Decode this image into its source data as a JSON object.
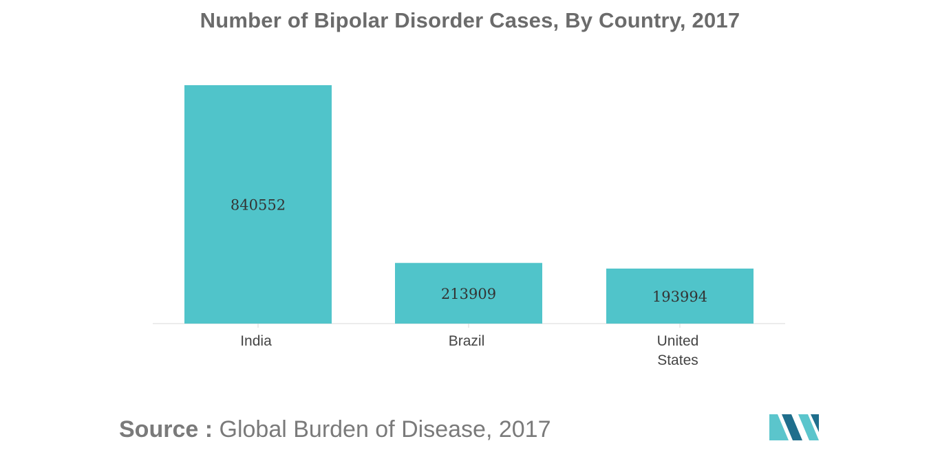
{
  "chart_data": {
    "type": "bar",
    "title": "Number of Bipolar Disorder Cases, By Country, 2017",
    "categories": [
      "India",
      "Brazil",
      "United States"
    ],
    "category_label_lines": [
      [
        "India"
      ],
      [
        "Brazil"
      ],
      [
        "United",
        "States"
      ]
    ],
    "values": [
      840552,
      213909,
      193994
    ],
    "data_labels": [
      "840552",
      "213909",
      "193994"
    ],
    "ylim": [
      0,
      840552
    ],
    "xlabel": "",
    "ylabel": "",
    "grid": false,
    "legend": "none",
    "bar_color": "#50c4ca",
    "label_color": "#333333"
  },
  "source": {
    "label": "Source :",
    "text": "Global Burden of Disease, 2017"
  },
  "colors": {
    "title": "#6b6b6b",
    "axis": "#d9d9d9",
    "logo_dark": "#1f6e8c",
    "logo_light": "#5bc5cc"
  }
}
